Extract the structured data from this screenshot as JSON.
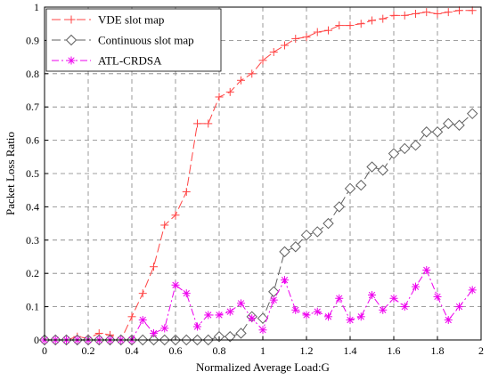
{
  "chart_data": {
    "type": "line",
    "xlabel": "Normalized Average Load:G",
    "ylabel": "Packet Loss Ratio",
    "xlim": [
      0,
      2
    ],
    "ylim": [
      0,
      1
    ],
    "xticks": [
      "0",
      "0.2",
      "0.4",
      "0.6",
      "0.8",
      "1",
      "1.2",
      "1.4",
      "1.6",
      "1.8",
      "2"
    ],
    "yticks": [
      "0",
      "0.1",
      "0.2",
      "0.3",
      "0.4",
      "0.5",
      "0.6",
      "0.7",
      "0.8",
      "0.9",
      "1"
    ],
    "grid": true,
    "legend_position": "top-left",
    "series": [
      {
        "name": "VDE slot map",
        "color": "#ff4444",
        "marker": "plus",
        "dash": "long-dash",
        "points": [
          [
            0,
            0
          ],
          [
            0.05,
            0
          ],
          [
            0.1,
            0
          ],
          [
            0.15,
            0.01
          ],
          [
            0.2,
            0.005
          ],
          [
            0.25,
            0.02
          ],
          [
            0.3,
            0.015
          ],
          [
            0.35,
            0
          ],
          [
            0.4,
            0.07
          ],
          [
            0.45,
            0.14
          ],
          [
            0.5,
            0.22
          ],
          [
            0.55,
            0.345
          ],
          [
            0.6,
            0.375
          ],
          [
            0.65,
            0.445
          ],
          [
            0.7,
            0.65
          ],
          [
            0.75,
            0.65
          ],
          [
            0.8,
            0.73
          ],
          [
            0.85,
            0.745
          ],
          [
            0.9,
            0.78
          ],
          [
            0.95,
            0.8
          ],
          [
            1.0,
            0.84
          ],
          [
            1.05,
            0.865
          ],
          [
            1.1,
            0.885
          ],
          [
            1.15,
            0.905
          ],
          [
            1.2,
            0.91
          ],
          [
            1.25,
            0.925
          ],
          [
            1.3,
            0.93
          ],
          [
            1.35,
            0.945
          ],
          [
            1.4,
            0.945
          ],
          [
            1.45,
            0.95
          ],
          [
            1.5,
            0.96
          ],
          [
            1.55,
            0.965
          ],
          [
            1.6,
            0.975
          ],
          [
            1.65,
            0.975
          ],
          [
            1.7,
            0.98
          ],
          [
            1.75,
            0.985
          ],
          [
            1.8,
            0.98
          ],
          [
            1.85,
            0.985
          ],
          [
            1.9,
            0.99
          ],
          [
            1.96,
            0.99
          ]
        ]
      },
      {
        "name": "Continuous slot map",
        "color": "#606060",
        "marker": "diamond",
        "dash": "long-dash",
        "points": [
          [
            0,
            0
          ],
          [
            0.05,
            0
          ],
          [
            0.1,
            0
          ],
          [
            0.15,
            0
          ],
          [
            0.2,
            0
          ],
          [
            0.25,
            0
          ],
          [
            0.3,
            0
          ],
          [
            0.35,
            0
          ],
          [
            0.4,
            0
          ],
          [
            0.45,
            0
          ],
          [
            0.5,
            0
          ],
          [
            0.55,
            0
          ],
          [
            0.6,
            0
          ],
          [
            0.65,
            0
          ],
          [
            0.7,
            0
          ],
          [
            0.75,
            0
          ],
          [
            0.8,
            0.01
          ],
          [
            0.85,
            0.01
          ],
          [
            0.9,
            0.02
          ],
          [
            0.95,
            0.07
          ],
          [
            1.0,
            0.065
          ],
          [
            1.05,
            0.145
          ],
          [
            1.1,
            0.265
          ],
          [
            1.15,
            0.28
          ],
          [
            1.2,
            0.315
          ],
          [
            1.25,
            0.325
          ],
          [
            1.3,
            0.35
          ],
          [
            1.35,
            0.4
          ],
          [
            1.4,
            0.455
          ],
          [
            1.45,
            0.465
          ],
          [
            1.5,
            0.52
          ],
          [
            1.55,
            0.51
          ],
          [
            1.6,
            0.56
          ],
          [
            1.65,
            0.575
          ],
          [
            1.7,
            0.585
          ],
          [
            1.75,
            0.625
          ],
          [
            1.8,
            0.625
          ],
          [
            1.85,
            0.65
          ],
          [
            1.9,
            0.645
          ],
          [
            1.96,
            0.68
          ]
        ]
      },
      {
        "name": "ATL-CRDSA",
        "color": "#ee00ee",
        "marker": "asterisk",
        "dash": "dash-dot",
        "points": [
          [
            0,
            0
          ],
          [
            0.05,
            0
          ],
          [
            0.1,
            0
          ],
          [
            0.15,
            0
          ],
          [
            0.2,
            0
          ],
          [
            0.25,
            0
          ],
          [
            0.3,
            0
          ],
          [
            0.35,
            0
          ],
          [
            0.4,
            0
          ],
          [
            0.45,
            0.06
          ],
          [
            0.5,
            0.02
          ],
          [
            0.55,
            0.035
          ],
          [
            0.6,
            0.165
          ],
          [
            0.65,
            0.14
          ],
          [
            0.7,
            0.04
          ],
          [
            0.75,
            0.075
          ],
          [
            0.8,
            0.075
          ],
          [
            0.85,
            0.085
          ],
          [
            0.9,
            0.11
          ],
          [
            0.95,
            0.065
          ],
          [
            1.0,
            0.03
          ],
          [
            1.05,
            0.12
          ],
          [
            1.1,
            0.18
          ],
          [
            1.15,
            0.09
          ],
          [
            1.2,
            0.075
          ],
          [
            1.25,
            0.085
          ],
          [
            1.3,
            0.07
          ],
          [
            1.35,
            0.125
          ],
          [
            1.4,
            0.06
          ],
          [
            1.45,
            0.07
          ],
          [
            1.5,
            0.135
          ],
          [
            1.55,
            0.09
          ],
          [
            1.6,
            0.125
          ],
          [
            1.65,
            0.1
          ],
          [
            1.7,
            0.16
          ],
          [
            1.75,
            0.21
          ],
          [
            1.8,
            0.13
          ],
          [
            1.85,
            0.06
          ],
          [
            1.9,
            0.1
          ],
          [
            1.96,
            0.15
          ]
        ]
      }
    ]
  }
}
